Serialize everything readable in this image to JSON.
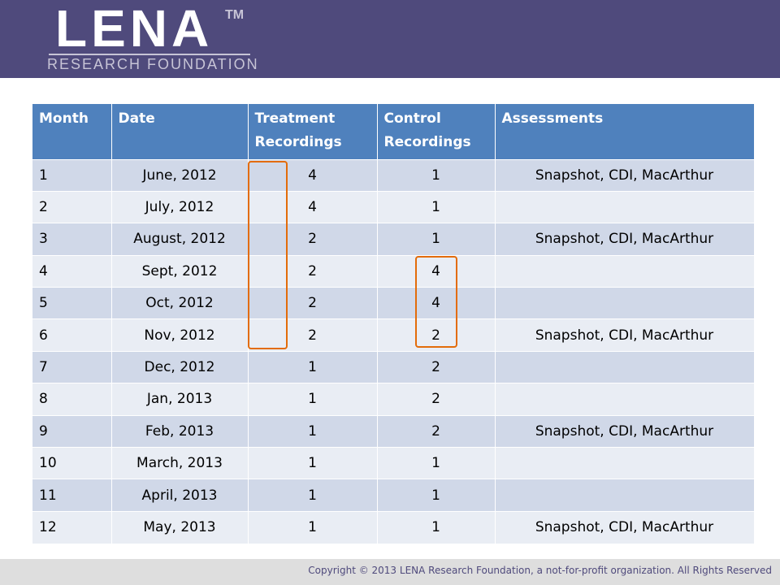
{
  "logo": {
    "name": "LENA",
    "trademark": "TM",
    "subtitle": "RESEARCH FOUNDATION"
  },
  "table": {
    "headers": [
      "Month",
      "Date",
      "Treatment Recordings",
      "Control Recordings",
      "Assessments"
    ],
    "rows": [
      [
        "1",
        "June, 2012",
        "4",
        "1",
        "Snapshot, CDI, MacArthur"
      ],
      [
        "2",
        "July, 2012",
        "4",
        "1",
        ""
      ],
      [
        "3",
        "August, 2012",
        "2",
        "1",
        "Snapshot, CDI, MacArthur"
      ],
      [
        "4",
        "Sept, 2012",
        "2",
        "4",
        ""
      ],
      [
        "5",
        "Oct, 2012",
        "2",
        "4",
        ""
      ],
      [
        "6",
        "Nov, 2012",
        "2",
        "2",
        "Snapshot, CDI, MacArthur"
      ],
      [
        "7",
        "Dec, 2012",
        "1",
        "2",
        ""
      ],
      [
        "8",
        "Jan, 2013",
        "1",
        "2",
        ""
      ],
      [
        "9",
        "Feb, 2013",
        "1",
        "2",
        "Snapshot, CDI, MacArthur"
      ],
      [
        "10",
        "March, 2013",
        "1",
        "1",
        ""
      ],
      [
        "11",
        "April, 2013",
        "1",
        "1",
        ""
      ],
      [
        "12",
        "May, 2013",
        "1",
        "1",
        "Snapshot, CDI, MacArthur"
      ]
    ]
  },
  "footer": {
    "copyright": "Copyright © 2013 LENA Research Foundation, a not-for-profit organization. All Rights Reserved"
  },
  "colors": {
    "header_bg": "#4f4a7c",
    "table_header": "#4f81bd",
    "row_odd": "#d0d8e8",
    "row_even": "#e9edf4",
    "highlight": "#e36c0a"
  }
}
